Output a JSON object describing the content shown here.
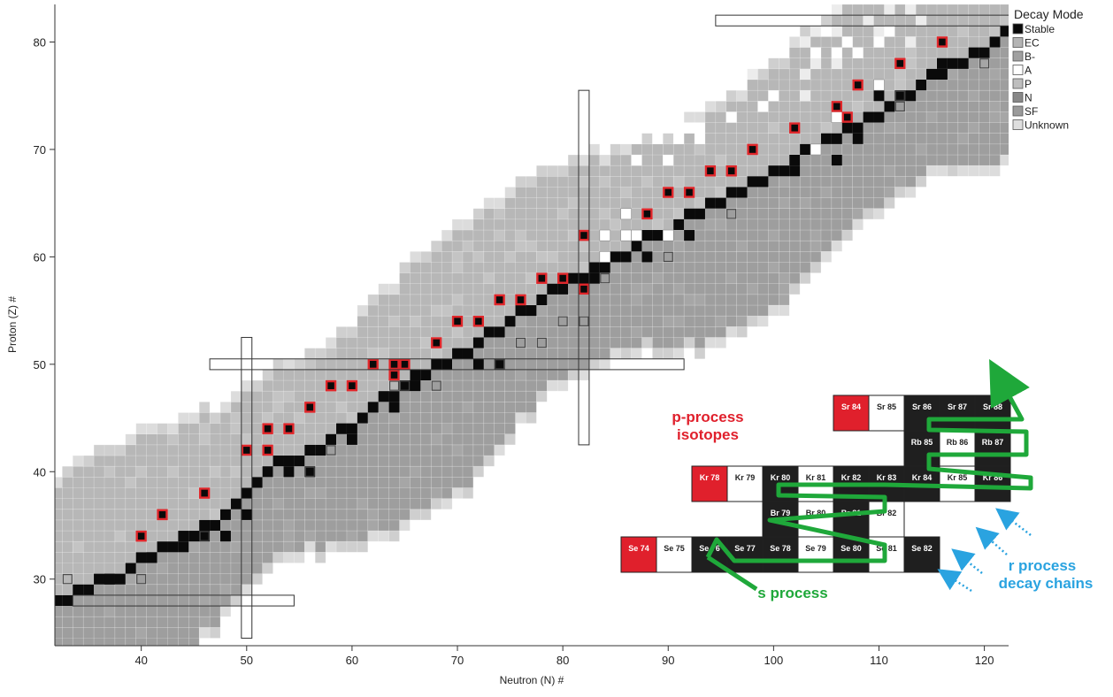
{
  "chart_data": {
    "type": "heatmap",
    "title": "",
    "xlabel": "Neutron (N) #",
    "ylabel": "Proton (Z) #",
    "xlim": [
      31.8,
      122.3
    ],
    "ylim": [
      23.8,
      83.5
    ],
    "x_ticks": [
      40,
      50,
      60,
      70,
      80,
      90,
      100,
      110,
      120
    ],
    "y_ticks": [
      30,
      40,
      50,
      60,
      70,
      80
    ],
    "grid": true,
    "legend": {
      "title": "Decay Mode",
      "position": "top-right",
      "entries": [
        {
          "label": "Stable",
          "color": "#0a0a0a"
        },
        {
          "label": "EC",
          "color": "#b4b4b4"
        },
        {
          "label": "B-",
          "color": "#a0a0a0"
        },
        {
          "label": "A",
          "color": "#ffffff"
        },
        {
          "label": "P",
          "color": "#bebebe"
        },
        {
          "label": "N",
          "color": "#888888"
        },
        {
          "label": "SF",
          "color": "#9a9a9a"
        },
        {
          "label": "Unknown",
          "color": "#dedede"
        }
      ]
    },
    "magic_numbers": [
      28,
      50,
      82
    ],
    "stable_valley": [
      [
        28,
        28
      ],
      [
        29,
        28
      ],
      [
        30,
        28
      ],
      [
        31,
        28
      ],
      [
        32,
        28
      ],
      [
        33,
        28
      ],
      [
        34,
        29
      ],
      [
        35,
        29
      ],
      [
        36,
        30
      ],
      [
        37,
        30
      ],
      [
        38,
        30
      ],
      [
        39,
        31
      ],
      [
        40,
        32
      ],
      [
        41,
        32
      ],
      [
        42,
        33
      ],
      [
        43,
        33
      ],
      [
        44,
        34
      ],
      [
        45,
        34
      ],
      [
        46,
        35
      ],
      [
        47,
        35
      ],
      [
        48,
        36
      ],
      [
        49,
        37
      ],
      [
        50,
        38
      ],
      [
        51,
        39
      ],
      [
        52,
        40
      ],
      [
        53,
        41
      ],
      [
        54,
        41
      ],
      [
        55,
        41
      ],
      [
        56,
        42
      ],
      [
        57,
        42
      ],
      [
        58,
        43
      ],
      [
        59,
        44
      ],
      [
        60,
        44
      ],
      [
        61,
        45
      ],
      [
        62,
        46
      ],
      [
        63,
        47
      ],
      [
        64,
        47
      ],
      [
        65,
        48
      ],
      [
        66,
        49
      ],
      [
        67,
        49
      ],
      [
        68,
        50
      ],
      [
        69,
        50
      ],
      [
        70,
        51
      ],
      [
        71,
        51
      ],
      [
        72,
        52
      ],
      [
        73,
        53
      ],
      [
        74,
        53
      ],
      [
        75,
        54
      ],
      [
        76,
        55
      ],
      [
        77,
        55
      ],
      [
        78,
        56
      ],
      [
        79,
        57
      ],
      [
        80,
        57
      ],
      [
        81,
        58
      ],
      [
        82,
        58
      ],
      [
        83,
        59
      ],
      [
        84,
        59
      ],
      [
        85,
        60
      ],
      [
        86,
        60
      ],
      [
        87,
        61
      ],
      [
        88,
        62
      ],
      [
        89,
        62
      ],
      [
        90,
        62
      ],
      [
        91,
        63
      ],
      [
        92,
        64
      ],
      [
        93,
        64
      ],
      [
        94,
        65
      ],
      [
        95,
        65
      ],
      [
        96,
        66
      ],
      [
        97,
        66
      ],
      [
        98,
        67
      ],
      [
        99,
        67
      ],
      [
        100,
        68
      ],
      [
        101,
        68
      ],
      [
        102,
        69
      ],
      [
        103,
        70
      ],
      [
        104,
        70
      ],
      [
        105,
        71
      ],
      [
        106,
        71
      ],
      [
        107,
        72
      ],
      [
        108,
        72
      ],
      [
        109,
        73
      ],
      [
        110,
        73
      ],
      [
        111,
        74
      ],
      [
        112,
        75
      ],
      [
        113,
        75
      ],
      [
        114,
        76
      ],
      [
        115,
        77
      ],
      [
        116,
        77
      ],
      [
        117,
        78
      ],
      [
        118,
        78
      ],
      [
        119,
        79
      ],
      [
        120,
        79
      ],
      [
        121,
        80
      ],
      [
        122,
        81
      ]
    ],
    "stable_extra": [
      [
        37,
        30
      ],
      [
        41,
        32
      ],
      [
        44,
        33
      ],
      [
        46,
        34
      ],
      [
        48,
        34
      ],
      [
        50,
        36
      ],
      [
        54,
        40
      ],
      [
        56,
        40
      ],
      [
        60,
        43
      ],
      [
        64,
        46
      ],
      [
        66,
        48
      ],
      [
        72,
        50
      ],
      [
        74,
        50
      ],
      [
        82,
        57
      ],
      [
        83,
        58
      ],
      [
        84,
        60
      ],
      [
        88,
        60
      ],
      [
        92,
        62
      ],
      [
        102,
        68
      ],
      [
        106,
        69
      ],
      [
        108,
        71
      ],
      [
        110,
        75
      ],
      [
        116,
        78
      ]
    ],
    "p_process_isotopes": [
      [
        40,
        34
      ],
      [
        42,
        36
      ],
      [
        46,
        38
      ],
      [
        50,
        42
      ],
      [
        52,
        42
      ],
      [
        52,
        44
      ],
      [
        54,
        44
      ],
      [
        56,
        46
      ],
      [
        58,
        48
      ],
      [
        60,
        48
      ],
      [
        62,
        50
      ],
      [
        64,
        49
      ],
      [
        64,
        50
      ],
      [
        65,
        50
      ],
      [
        68,
        52
      ],
      [
        70,
        54
      ],
      [
        72,
        54
      ],
      [
        74,
        56
      ],
      [
        76,
        56
      ],
      [
        78,
        58
      ],
      [
        80,
        58
      ],
      [
        82,
        57
      ],
      [
        82,
        62
      ],
      [
        88,
        64
      ],
      [
        90,
        66
      ],
      [
        92,
        66
      ],
      [
        94,
        68
      ],
      [
        96,
        68
      ],
      [
        98,
        70
      ],
      [
        102,
        72
      ],
      [
        106,
        74
      ],
      [
        107,
        73
      ],
      [
        108,
        76
      ],
      [
        112,
        78
      ],
      [
        116,
        80
      ]
    ],
    "hollow_squares": [
      [
        33,
        30
      ],
      [
        40,
        30
      ],
      [
        46,
        34
      ],
      [
        56,
        40
      ],
      [
        58,
        42
      ],
      [
        64,
        48
      ],
      [
        65,
        48
      ],
      [
        68,
        48
      ],
      [
        74,
        50
      ],
      [
        76,
        52
      ],
      [
        78,
        52
      ],
      [
        80,
        54
      ],
      [
        82,
        54
      ],
      [
        84,
        58
      ],
      [
        90,
        60
      ],
      [
        96,
        64
      ],
      [
        112,
        74
      ],
      [
        112,
        75
      ],
      [
        120,
        78
      ]
    ],
    "alpha_cells": [
      [
        84,
        60
      ],
      [
        84,
        62
      ],
      [
        86,
        64
      ],
      [
        86,
        62
      ],
      [
        87,
        62
      ],
      [
        90,
        62
      ],
      [
        104,
        70
      ],
      [
        110,
        76
      ],
      [
        106,
        73
      ]
    ],
    "inset": {
      "label_p": "p-process",
      "label_p2": "isotopes",
      "label_s": "s process",
      "label_r1": "r process",
      "label_r2": "decay chains",
      "rows": [
        [
          {
            "t": "Sr 84",
            "k": "p"
          },
          {
            "t": "Sr 85",
            "k": "w"
          },
          {
            "t": "Sr 86",
            "k": "s"
          },
          {
            "t": "Sr 87",
            "k": "s"
          },
          {
            "t": "Sr 88",
            "k": "s"
          }
        ],
        [
          {
            "t": "Rb 85",
            "k": "s"
          },
          {
            "t": "Rb 86",
            "k": "w"
          },
          {
            "t": "Rb 87",
            "k": "s"
          }
        ],
        [
          {
            "t": "Kr 78",
            "k": "p"
          },
          {
            "t": "Kr 79",
            "k": "w"
          },
          {
            "t": "Kr 80",
            "k": "s"
          },
          {
            "t": "Kr 81",
            "k": "w"
          },
          {
            "t": "Kr 82",
            "k": "s"
          },
          {
            "t": "Kr 83",
            "k": "s"
          },
          {
            "t": "Kr 84",
            "k": "s"
          },
          {
            "t": "Kr 85",
            "k": "w"
          },
          {
            "t": "Kr 86",
            "k": "s"
          }
        ],
        [
          {
            "t": "Br 79",
            "k": "s"
          },
          {
            "t": "Br 80",
            "k": "w"
          },
          {
            "t": "Br 81",
            "k": "s"
          },
          {
            "t": "Br 82",
            "k": "w"
          }
        ],
        [
          {
            "t": "Se 74",
            "k": "p"
          },
          {
            "t": "Se 75",
            "k": "w"
          },
          {
            "t": "Se 76",
            "k": "s"
          },
          {
            "t": "Se 77",
            "k": "s"
          },
          {
            "t": "Se 78",
            "k": "s"
          },
          {
            "t": "Se 79",
            "k": "w"
          },
          {
            "t": "Se 80",
            "k": "s"
          },
          {
            "t": "Se 81",
            "k": "w"
          },
          {
            "t": "Se 82",
            "k": "s"
          }
        ]
      ]
    }
  }
}
